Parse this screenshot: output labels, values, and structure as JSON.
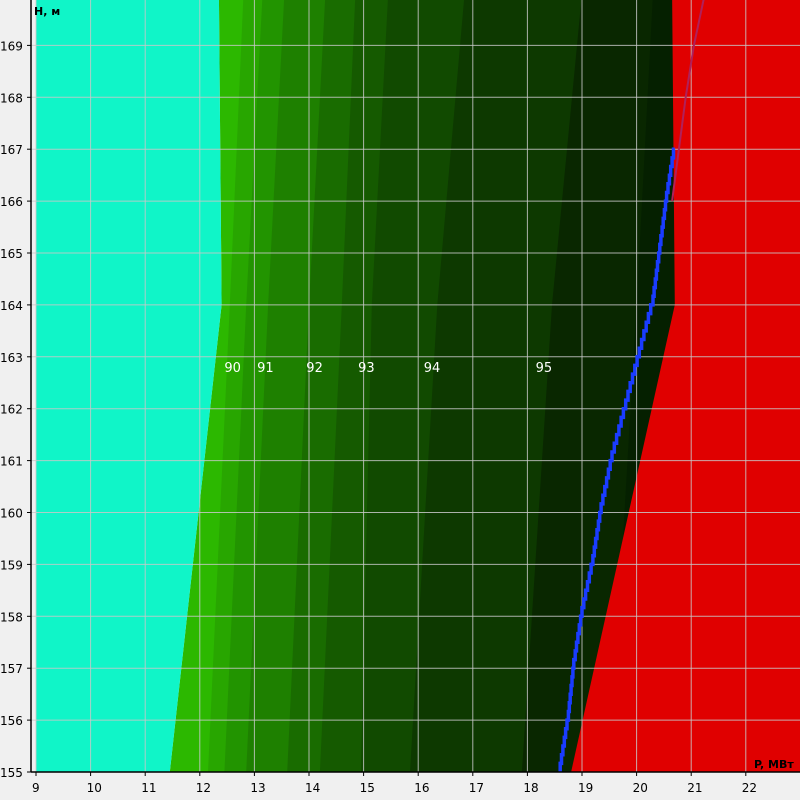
{
  "chart_data": {
    "type": "heatmap",
    "title": "",
    "xlabel": "P, МВт",
    "ylabel": "H, м",
    "xlim": [
      9,
      23
    ],
    "ylim": [
      155,
      170
    ],
    "x_ticks": [
      "9",
      "10",
      "11",
      "12",
      "13",
      "14",
      "15",
      "16",
      "17",
      "18",
      "19",
      "20",
      "21",
      "22"
    ],
    "y_ticks": [
      "155",
      "156",
      "157",
      "158",
      "159",
      "160",
      "161",
      "162",
      "163",
      "164",
      "165",
      "166",
      "167",
      "168",
      "169"
    ],
    "grid": true,
    "regions": [
      {
        "name": "low-power-zone",
        "color": "#10f5c8",
        "boundary": [
          [
            9,
            170
          ],
          [
            12.35,
            170
          ],
          [
            12.4,
            164
          ],
          [
            11.45,
            155
          ],
          [
            9,
            155
          ]
        ]
      },
      {
        "name": "high-power-zone",
        "color": "#e00000",
        "boundary": [
          [
            20.65,
            170
          ],
          [
            23,
            170
          ],
          [
            23,
            155
          ],
          [
            18.8,
            155
          ],
          [
            20.7,
            164
          ]
        ]
      }
    ],
    "efficiency_bands": [
      {
        "level": "90",
        "color": "#2cb800",
        "start": [
          [
            12.35,
            170
          ],
          [
            12.4,
            164
          ],
          [
            11.45,
            155
          ]
        ]
      },
      {
        "level": "",
        "color": "#28a600",
        "start": [
          [
            12.8,
            170
          ],
          [
            12.55,
            164
          ],
          [
            12.15,
            155
          ]
        ]
      },
      {
        "level": "91",
        "color": "#229400",
        "start": [
          [
            13.15,
            170
          ],
          [
            12.85,
            164
          ],
          [
            12.45,
            155
          ]
        ]
      },
      {
        "level": "",
        "color": "#1e8000",
        "start": [
          [
            13.55,
            170
          ],
          [
            13.25,
            164
          ],
          [
            12.85,
            155
          ]
        ]
      },
      {
        "level": "92",
        "color": "#196c00",
        "start": [
          [
            14.3,
            170
          ],
          [
            14.0,
            164
          ],
          [
            13.6,
            155
          ]
        ]
      },
      {
        "level": "",
        "color": "#155a00",
        "start": [
          [
            14.85,
            170
          ],
          [
            14.6,
            164
          ],
          [
            14.2,
            155
          ]
        ]
      },
      {
        "level": "93",
        "color": "#114a00",
        "start": [
          [
            15.45,
            170
          ],
          [
            15.15,
            164
          ],
          [
            14.95,
            155
          ]
        ]
      },
      {
        "level": "94",
        "color": "#0d3900",
        "start": [
          [
            16.85,
            170
          ],
          [
            16.35,
            164
          ],
          [
            15.85,
            155
          ]
        ]
      },
      {
        "level": "95",
        "color": "#092700",
        "start": [
          [
            19.0,
            170
          ],
          [
            18.45,
            164
          ],
          [
            17.9,
            155
          ]
        ]
      },
      {
        "level": "",
        "color": "#052000",
        "start": [
          [
            20.3,
            170
          ],
          [
            20.0,
            164
          ],
          [
            19.5,
            155
          ]
        ]
      }
    ],
    "limit_line": {
      "color": "#1a3cff",
      "x": [
        18.6,
        18.75,
        18.85,
        19.0,
        19.2,
        19.35,
        19.55,
        19.8,
        20.05,
        20.3,
        20.55,
        20.7
      ],
      "y": [
        155,
        156,
        157,
        158,
        159,
        160,
        161,
        162,
        163,
        164,
        166,
        167
      ]
    },
    "secondary_line": {
      "color": "#b0205a",
      "x": [
        20.65,
        20.9,
        21.05,
        21.25
      ],
      "y": [
        166,
        168,
        169,
        170
      ]
    },
    "contour_labels": [
      {
        "text": "90",
        "x": 12.45,
        "y": 162.8
      },
      {
        "text": "91",
        "x": 13.05,
        "y": 162.8
      },
      {
        "text": "92",
        "x": 13.95,
        "y": 162.8
      },
      {
        "text": "93",
        "x": 14.9,
        "y": 162.8
      },
      {
        "text": "94",
        "x": 16.1,
        "y": 162.8
      },
      {
        "text": "95",
        "x": 18.15,
        "y": 162.8
      }
    ],
    "colors": {
      "background": "#f0f0f0",
      "grid": "#c8c8c8",
      "axis": "#000000"
    }
  }
}
